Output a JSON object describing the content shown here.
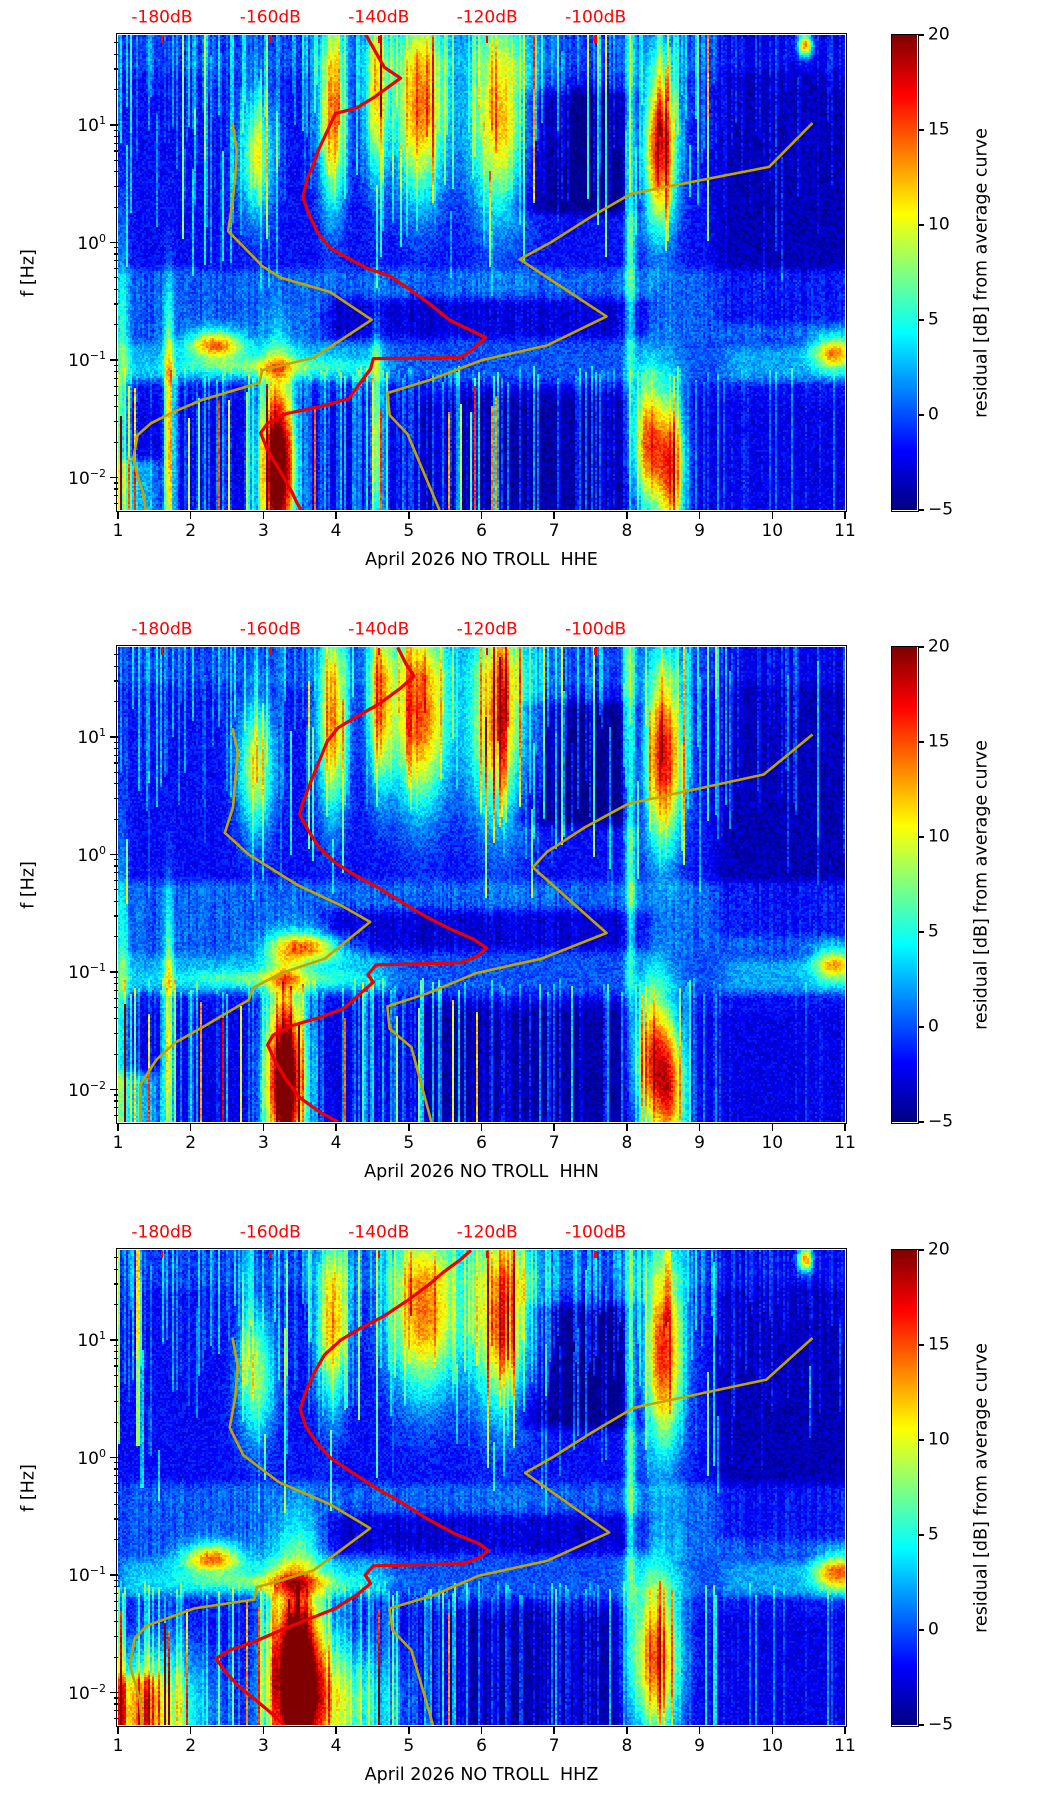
{
  "figure": {
    "colors": {
      "curve_red": "#ee0000",
      "curve_yellow": "#c2a400",
      "top_axis_red": "#ff0000",
      "text": "#000000",
      "background": "#ffffff"
    }
  },
  "shared_axes": {
    "x_axis": {
      "range": [
        1,
        11
      ],
      "ticks": [
        1,
        2,
        3,
        4,
        5,
        6,
        7,
        8,
        9,
        10,
        11
      ],
      "tick_labels": [
        "1",
        "2",
        "3",
        "4",
        "5",
        "6",
        "7",
        "8",
        "9",
        "10",
        "11"
      ]
    },
    "y_axis": {
      "label": "f [Hz]",
      "scale": "log",
      "range_hz": [
        0.0053,
        58.3
      ],
      "major_ticks_hz": [
        10,
        1,
        0.1,
        0.01
      ],
      "major_tick_exponents": [
        "1",
        "0",
        "−1",
        "−2"
      ],
      "mantissa_base": "10"
    },
    "top_axis": {
      "unit": "dB",
      "range_db": [
        -188.1,
        -54.0
      ],
      "ticks_db": [
        -180,
        -160,
        -140,
        -120,
        -100
      ],
      "tick_labels": [
        "-180dB",
        "-160dB",
        "-140dB",
        "-120dB",
        "-100dB"
      ]
    },
    "colorbar": {
      "label": "residual [dB] from average curve",
      "colormap": "jet",
      "range": [
        -5,
        20
      ],
      "ticks": [
        20,
        15,
        10,
        5,
        0,
        -5
      ],
      "tick_labels": [
        "20",
        "15",
        "10",
        "5",
        "0",
        "−5"
      ]
    },
    "background_regions": [
      {
        "f_lo": 0.14,
        "f_hi": 0.6,
        "day_lo": 1.0,
        "day_hi": 11.3,
        "amp": 2.2
      },
      {
        "f_lo": 0.066,
        "f_hi": 0.138,
        "day_lo": 1.0,
        "day_hi": 4.7,
        "amp": 4.2
      },
      {
        "f_lo": 0.066,
        "f_hi": 0.138,
        "day_lo": 4.7,
        "day_hi": 9.35,
        "amp": 1.9
      },
      {
        "f_lo": 0.066,
        "f_hi": 0.131,
        "day_lo": 9.35,
        "day_hi": 11.3,
        "amp": 4.0
      },
      {
        "f_lo": 0.15,
        "f_hi": 0.33,
        "day_lo": 3.85,
        "day_hi": 8.3,
        "amp": -3.2
      },
      {
        "f_lo": 1.8,
        "f_hi": 20,
        "day_lo": 6.45,
        "day_hi": 8.25,
        "amp": -3.0
      },
      {
        "f_lo": 0.005,
        "f_hi": 0.056,
        "day_lo": 5.2,
        "day_hi": 8.05,
        "amp": -1.6
      },
      {
        "f_lo": 0.2,
        "f_hi": 63,
        "day_lo": 9.25,
        "day_hi": 11.3,
        "amp": -1.9
      },
      {
        "f_lo": 28,
        "f_hi": 63,
        "day_lo": 1.0,
        "day_hi": 11.3,
        "amp": 1.1
      },
      {
        "f_lo": 0.0045,
        "f_hi": 0.014,
        "day_lo": 0.9,
        "day_hi": 1.55,
        "amp": 5.0
      },
      {
        "f_lo": 0.0045,
        "f_hi": 0.045,
        "day_lo": 1.0,
        "day_hi": 11.3,
        "amp": -0.6
      }
    ]
  },
  "chart_data": [
    {
      "type": "heatmap",
      "xlabel": "April 2026 NO TROLL  HHE",
      "seed": 11,
      "red_curve_db_hz": [
        [
          -142.5,
          60
        ],
        [
          -139,
          31
        ],
        [
          -136,
          25
        ],
        [
          -141,
          17
        ],
        [
          -144,
          14
        ],
        [
          -148,
          12.5
        ],
        [
          -149,
          10
        ],
        [
          -150,
          7.9
        ],
        [
          -151,
          6.3
        ],
        [
          -152,
          4.7
        ],
        [
          -153.2,
          3.5
        ],
        [
          -154,
          2.4
        ],
        [
          -152.8,
          1.7
        ],
        [
          -151.2,
          1.2
        ],
        [
          -149,
          0.9
        ],
        [
          -146,
          0.75
        ],
        [
          -142,
          0.6
        ],
        [
          -138,
          0.52
        ],
        [
          -135,
          0.42
        ],
        [
          -131,
          0.31
        ],
        [
          -127,
          0.22
        ],
        [
          -122,
          0.17
        ],
        [
          -120.3,
          0.155
        ],
        [
          -123,
          0.12
        ],
        [
          -125,
          0.105
        ],
        [
          -141,
          0.103
        ],
        [
          -141.5,
          0.084
        ],
        [
          -143,
          0.068
        ],
        [
          -145.5,
          0.047
        ],
        [
          -151,
          0.04
        ],
        [
          -157,
          0.035
        ],
        [
          -160.5,
          0.029
        ],
        [
          -161.8,
          0.024
        ],
        [
          -160.5,
          0.017
        ],
        [
          -159,
          0.013
        ],
        [
          -157.5,
          0.01
        ],
        [
          -156,
          0.0075
        ],
        [
          -155,
          0.006
        ],
        [
          -154.3,
          0.0053
        ]
      ],
      "yellow_low_curve_db_hz": [
        [
          -167,
          10.5
        ],
        [
          -166.2,
          6.0
        ],
        [
          -166.5,
          3.5
        ],
        [
          -167,
          2.2
        ],
        [
          -167.8,
          1.25
        ],
        [
          -164,
          0.83
        ],
        [
          -161.5,
          0.63
        ],
        [
          -158,
          0.5
        ],
        [
          -149,
          0.38
        ],
        [
          -141.3,
          0.22
        ],
        [
          -152,
          0.105
        ],
        [
          -161.5,
          0.082
        ],
        [
          -162,
          0.064
        ],
        [
          -172.5,
          0.046
        ],
        [
          -178,
          0.036
        ],
        [
          -182,
          0.029
        ],
        [
          -184.5,
          0.023
        ],
        [
          -185.3,
          0.0144
        ],
        [
          -184.4,
          0.01
        ],
        [
          -183.5,
          0.0075
        ],
        [
          -183,
          0.0053
        ]
      ],
      "yellow_high_curve_db_hz": [
        [
          -60,
          10.4
        ],
        [
          -68,
          4.4
        ],
        [
          -93.5,
          2.6
        ],
        [
          -101,
          1.64
        ],
        [
          -108.3,
          1.0
        ],
        [
          -114,
          0.72
        ],
        [
          -98,
          0.235
        ],
        [
          -109,
          0.133
        ],
        [
          -121,
          0.1
        ],
        [
          -130.4,
          0.068
        ],
        [
          -138.4,
          0.0525
        ],
        [
          -138,
          0.034
        ],
        [
          -134.7,
          0.0235
        ],
        [
          -128.8,
          0.0053
        ]
      ],
      "hotspots": [
        [
          3.2,
          0.012,
          0.16,
          0.55,
          28
        ],
        [
          2.35,
          0.135,
          0.26,
          0.085,
          13
        ],
        [
          2.9,
          5.5,
          0.17,
          0.38,
          10
        ],
        [
          3.95,
          12,
          0.13,
          0.55,
          15
        ],
        [
          4.55,
          18,
          0.11,
          0.5,
          13
        ],
        [
          5.15,
          15,
          0.24,
          0.55,
          16
        ],
        [
          6.25,
          12,
          0.3,
          0.6,
          14
        ],
        [
          8.45,
          6.5,
          0.17,
          0.5,
          19
        ],
        [
          8.3,
          0.02,
          0.14,
          0.4,
          16
        ],
        [
          8.6,
          0.012,
          0.14,
          0.45,
          17
        ],
        [
          10.85,
          0.115,
          0.2,
          0.1,
          12
        ],
        [
          1.7,
          0.02,
          0.045,
          0.8,
          13
        ],
        [
          4.55,
          0.02,
          0.05,
          0.6,
          11
        ],
        [
          8.05,
          3,
          0.05,
          1.4,
          9
        ],
        [
          3.1,
          0.088,
          0.9,
          0.05,
          5
        ],
        [
          10.45,
          48,
          0.07,
          0.07,
          16
        ],
        [
          1.05,
          0.05,
          0.07,
          1.0,
          7
        ]
      ]
    },
    {
      "type": "heatmap",
      "xlabel": "April 2026 NO TROLL  HHN",
      "seed": 22,
      "red_curve_db_hz": [
        [
          -136.5,
          58
        ],
        [
          -135,
          42
        ],
        [
          -133.5,
          33
        ],
        [
          -136,
          26
        ],
        [
          -140,
          19
        ],
        [
          -144,
          15
        ],
        [
          -147.5,
          12
        ],
        [
          -149.5,
          9.2
        ],
        [
          -151,
          6.2
        ],
        [
          -152.5,
          4.2
        ],
        [
          -154,
          2.8
        ],
        [
          -154.6,
          2.2
        ],
        [
          -153,
          1.6
        ],
        [
          -151,
          1.15
        ],
        [
          -148,
          0.85
        ],
        [
          -144,
          0.65
        ],
        [
          -140,
          0.52
        ],
        [
          -136,
          0.4
        ],
        [
          -131.5,
          0.3
        ],
        [
          -127,
          0.235
        ],
        [
          -122.5,
          0.19
        ],
        [
          -120.1,
          0.16
        ],
        [
          -122,
          0.135
        ],
        [
          -125,
          0.12
        ],
        [
          -140.5,
          0.115
        ],
        [
          -142,
          0.095
        ],
        [
          -141,
          0.082
        ],
        [
          -143,
          0.068
        ],
        [
          -146.5,
          0.049
        ],
        [
          -151,
          0.041
        ],
        [
          -156,
          0.035
        ],
        [
          -159.5,
          0.029
        ],
        [
          -160.5,
          0.024
        ],
        [
          -159,
          0.017
        ],
        [
          -157,
          0.012
        ],
        [
          -154.5,
          0.0085
        ],
        [
          -151,
          0.0065
        ],
        [
          -147.5,
          0.0053
        ]
      ],
      "yellow_low_curve_db_hz": [
        [
          -167,
          11.9
        ],
        [
          -166,
          7.5
        ],
        [
          -166.9,
          2.5
        ],
        [
          -168.4,
          1.53
        ],
        [
          -164,
          1.0
        ],
        [
          -155,
          0.55
        ],
        [
          -147,
          0.37
        ],
        [
          -141.6,
          0.267
        ],
        [
          -150,
          0.13
        ],
        [
          -158,
          0.098
        ],
        [
          -163.2,
          0.0735
        ],
        [
          -164,
          0.058
        ],
        [
          -172,
          0.035
        ],
        [
          -177.6,
          0.025
        ],
        [
          -181,
          0.018
        ],
        [
          -184,
          0.011
        ],
        [
          -184,
          0.0053
        ]
      ],
      "yellow_high_curve_db_hz": [
        [
          -60,
          10.5
        ],
        [
          -69,
          4.8
        ],
        [
          -94,
          2.7
        ],
        [
          -102,
          1.7
        ],
        [
          -109,
          1.05
        ],
        [
          -111.6,
          0.78
        ],
        [
          -98,
          0.215
        ],
        [
          -110,
          0.13
        ],
        [
          -122,
          0.098
        ],
        [
          -131,
          0.066
        ],
        [
          -138.4,
          0.051
        ],
        [
          -138,
          0.033
        ],
        [
          -134,
          0.023
        ],
        [
          -130.3,
          0.0053
        ]
      ],
      "hotspots": [
        [
          3.3,
          0.012,
          0.18,
          0.55,
          28
        ],
        [
          3.6,
          0.16,
          0.35,
          0.085,
          13
        ],
        [
          2.9,
          5.5,
          0.18,
          0.4,
          11
        ],
        [
          3.95,
          14,
          0.14,
          0.55,
          15
        ],
        [
          4.6,
          20,
          0.12,
          0.5,
          13
        ],
        [
          5.15,
          16,
          0.27,
          0.55,
          17
        ],
        [
          6.25,
          14,
          0.3,
          0.6,
          15
        ],
        [
          8.5,
          7,
          0.19,
          0.55,
          19
        ],
        [
          8.35,
          0.018,
          0.15,
          0.45,
          16
        ],
        [
          8.6,
          0.01,
          0.14,
          0.45,
          16
        ],
        [
          10.85,
          0.115,
          0.2,
          0.1,
          11
        ],
        [
          1.7,
          0.02,
          0.045,
          0.8,
          12
        ],
        [
          8.05,
          3,
          0.05,
          1.4,
          9
        ],
        [
          3.1,
          0.088,
          0.9,
          0.05,
          5
        ],
        [
          1.05,
          0.05,
          0.07,
          1.0,
          7
        ]
      ]
    },
    {
      "type": "heatmap",
      "xlabel": "April 2026 NO TROLL  HHZ",
      "seed": 33,
      "red_curve_db_hz": [
        [
          -123,
          58
        ],
        [
          -125,
          48
        ],
        [
          -128,
          38
        ],
        [
          -131,
          29
        ],
        [
          -134.5,
          22
        ],
        [
          -139,
          16
        ],
        [
          -143.5,
          12.5
        ],
        [
          -147,
          10
        ],
        [
          -150,
          7.5
        ],
        [
          -152,
          5.2
        ],
        [
          -153.5,
          3.6
        ],
        [
          -154.5,
          2.6
        ],
        [
          -153.5,
          1.85
        ],
        [
          -151.5,
          1.35
        ],
        [
          -149,
          1.0
        ],
        [
          -145,
          0.75
        ],
        [
          -140.5,
          0.55
        ],
        [
          -136,
          0.42
        ],
        [
          -131,
          0.3
        ],
        [
          -126,
          0.225
        ],
        [
          -121.5,
          0.185
        ],
        [
          -119.8,
          0.162
        ],
        [
          -121.5,
          0.14
        ],
        [
          -124.5,
          0.125
        ],
        [
          -141,
          0.12
        ],
        [
          -142.5,
          0.1
        ],
        [
          -141.5,
          0.085
        ],
        [
          -144,
          0.068
        ],
        [
          -148,
          0.052
        ],
        [
          -153,
          0.042
        ],
        [
          -158,
          0.034
        ],
        [
          -163,
          0.027
        ],
        [
          -167.5,
          0.023
        ],
        [
          -170,
          0.0195
        ],
        [
          -168.5,
          0.0155
        ],
        [
          -166,
          0.0115
        ],
        [
          -162.5,
          0.0085
        ],
        [
          -159.5,
          0.0065
        ],
        [
          -157.5,
          0.0053
        ]
      ],
      "yellow_low_curve_db_hz": [
        [
          -167,
          10.5
        ],
        [
          -166,
          6.0
        ],
        [
          -166.5,
          3.2
        ],
        [
          -167.5,
          1.8
        ],
        [
          -165,
          1.05
        ],
        [
          -158.5,
          0.62
        ],
        [
          -149,
          0.4
        ],
        [
          -141.6,
          0.25
        ],
        [
          -152,
          0.11
        ],
        [
          -158,
          0.09
        ],
        [
          -162.5,
          0.079
        ],
        [
          -163,
          0.062
        ],
        [
          -174,
          0.052
        ],
        [
          -182.8,
          0.037
        ],
        [
          -185,
          0.029
        ],
        [
          -185.9,
          0.017
        ],
        [
          -184.1,
          0.0088
        ],
        [
          -183.7,
          0.0053
        ]
      ],
      "yellow_high_curve_db_hz": [
        [
          -60,
          10.4
        ],
        [
          -68.5,
          4.6
        ],
        [
          -93,
          2.65
        ],
        [
          -101,
          1.6
        ],
        [
          -108,
          1.0
        ],
        [
          -113,
          0.74
        ],
        [
          -97.5,
          0.23
        ],
        [
          -109,
          0.132
        ],
        [
          -121.5,
          0.099
        ],
        [
          -130,
          0.067
        ],
        [
          -138,
          0.052
        ],
        [
          -137.5,
          0.034
        ],
        [
          -134,
          0.023
        ],
        [
          -130,
          0.0053
        ]
      ],
      "hotspots": [
        [
          3.45,
          0.015,
          0.26,
          0.6,
          28
        ],
        [
          2.3,
          0.14,
          0.28,
          0.085,
          13
        ],
        [
          1.5,
          0.007,
          0.5,
          0.4,
          12
        ],
        [
          4.0,
          0.008,
          0.55,
          0.35,
          9
        ],
        [
          2.9,
          5,
          0.18,
          0.4,
          10
        ],
        [
          3.95,
          14,
          0.14,
          0.5,
          14
        ],
        [
          5.2,
          18,
          0.33,
          0.5,
          16
        ],
        [
          6.3,
          15,
          0.3,
          0.55,
          16
        ],
        [
          8.5,
          8,
          0.19,
          0.6,
          18
        ],
        [
          8.4,
          0.02,
          0.24,
          0.5,
          17
        ],
        [
          10.9,
          0.105,
          0.22,
          0.11,
          13
        ],
        [
          8.05,
          3,
          0.05,
          1.4,
          9
        ],
        [
          3.1,
          0.088,
          0.9,
          0.05,
          5
        ],
        [
          10.45,
          48,
          0.07,
          0.07,
          16
        ]
      ]
    }
  ]
}
